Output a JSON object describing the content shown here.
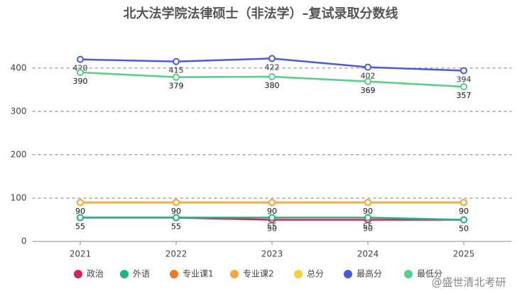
{
  "chart_data": {
    "type": "line",
    "title": "北大法学院法律硕士（非法学）–复试录取分数线",
    "categories": [
      "2021",
      "2022",
      "2023",
      "2024",
      "2025"
    ],
    "series": [
      {
        "name": "政治",
        "color": "#d5245a",
        "values": [
          55,
          55,
          50,
          50,
          50
        ]
      },
      {
        "name": "外语",
        "color": "#1fb67b",
        "values": [
          55,
          55,
          55,
          55,
          50
        ]
      },
      {
        "name": "专业课1",
        "color": "#ef7a2c",
        "values": [
          90,
          90,
          90,
          90,
          90
        ]
      },
      {
        "name": "专业课2",
        "color": "#f0a93b",
        "values": [
          90,
          90,
          90,
          90,
          90
        ]
      },
      {
        "name": "总分",
        "color": "#f6cf3b",
        "values": [
          390,
          379,
          380,
          369,
          357
        ]
      },
      {
        "name": "最高分",
        "color": "#4b5bd8",
        "values": [
          420,
          415,
          422,
          402,
          394
        ]
      },
      {
        "name": "最低分",
        "color": "#55d18f",
        "values": [
          390,
          379,
          380,
          369,
          357
        ]
      }
    ],
    "ylim": [
      0,
      480
    ],
    "yticks": [
      0,
      100,
      200,
      300,
      400
    ],
    "grid": true,
    "legend": "bottom",
    "watermark": "@盛世清北考研"
  }
}
